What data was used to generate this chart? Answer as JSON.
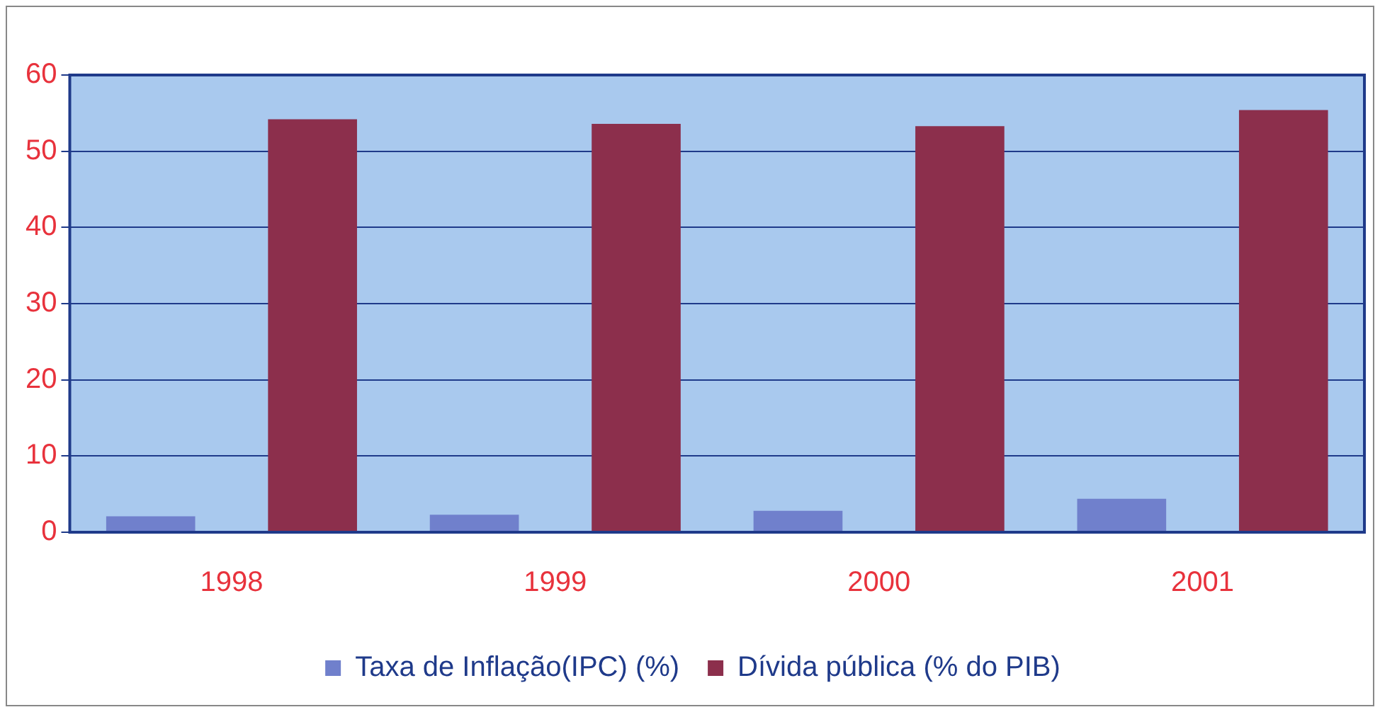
{
  "chart_data": {
    "type": "bar",
    "categories": [
      "1998",
      "1999",
      "2000",
      "2001"
    ],
    "series": [
      {
        "name": "Taxa de Inflação(IPC) (%)",
        "color": "#7080cc",
        "values": [
          2.1,
          2.3,
          2.8,
          4.4
        ]
      },
      {
        "name": "Dívida pública (% do PIB)",
        "color": "#8c2f4c",
        "values": [
          54.2,
          53.6,
          53.3,
          55.4
        ]
      }
    ],
    "ylim": [
      0,
      60
    ],
    "yticks": [
      0,
      10,
      20,
      30,
      40,
      50,
      60
    ],
    "grid": "y",
    "legend": "bottom"
  }
}
